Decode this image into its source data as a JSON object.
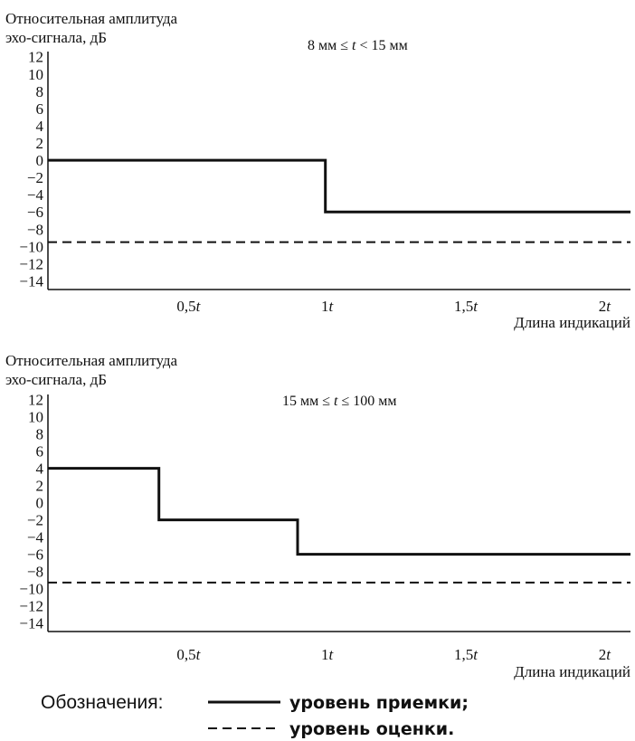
{
  "chart_data": [
    {
      "type": "line",
      "ylabel_line1": "Относительная амплитуда",
      "ylabel_line2": "эхо-сигнала, дБ",
      "xlabel": "Длина индикаций",
      "condition_prefix": "8 мм ≤ ",
      "condition_var": "t",
      "condition_suffix": " < 15 мм",
      "ylim": [
        -15,
        12.6
      ],
      "xlim": [
        0,
        2.1
      ],
      "yticks": [
        "12",
        "10",
        "8",
        "6",
        "4",
        "2",
        "0",
        "−2",
        "−4",
        "−6",
        "−8",
        "−10",
        "−12",
        "−14"
      ],
      "ytick_values": [
        12,
        10,
        8,
        6,
        4,
        2,
        0,
        -2,
        -4,
        -6,
        -8,
        -10,
        -12,
        -14
      ],
      "xticks": [
        {
          "value": 0.5,
          "num": "0,5",
          "var": "t"
        },
        {
          "value": 1,
          "num": "1",
          "var": "t"
        },
        {
          "value": 1.5,
          "num": "1,5",
          "var": "t"
        },
        {
          "value": 2,
          "num": "2",
          "var": "t"
        }
      ],
      "series": [
        {
          "style": "solid",
          "x": [
            0,
            1,
            1,
            2.1
          ],
          "y": [
            0,
            0,
            -6,
            -6
          ]
        },
        {
          "style": "dashed",
          "x": [
            0,
            2.1
          ],
          "y": [
            -9.5,
            -9.5
          ]
        }
      ]
    },
    {
      "type": "line",
      "ylabel_line1": "Относительная амплитуда",
      "ylabel_line2": "эхо-сигнала, дБ",
      "xlabel": "Длина индикаций",
      "condition_prefix": "15 мм ≤ ",
      "condition_var": "t",
      "condition_suffix": " ≤ 100 мм",
      "ylim": [
        -15,
        12.6
      ],
      "xlim": [
        0,
        2.1
      ],
      "yticks": [
        "12",
        "10",
        "8",
        "6",
        "4",
        "2",
        "0",
        "−2",
        "−4",
        "−6",
        "−8",
        "−10",
        "−12",
        "−14"
      ],
      "ytick_values": [
        12,
        10,
        8,
        6,
        4,
        2,
        0,
        -2,
        -4,
        -6,
        -8,
        -10,
        -12,
        -14
      ],
      "xticks": [
        {
          "value": 0.5,
          "num": "0,5",
          "var": "t"
        },
        {
          "value": 1,
          "num": "1",
          "var": "t"
        },
        {
          "value": 1.5,
          "num": "1,5",
          "var": "t"
        },
        {
          "value": 2,
          "num": "2",
          "var": "t"
        }
      ],
      "series": [
        {
          "style": "solid",
          "x": [
            0,
            0.4,
            0.4,
            0.9,
            0.9,
            2.1
          ],
          "y": [
            4,
            4,
            -2,
            -2,
            -6,
            -6
          ]
        },
        {
          "style": "dashed",
          "x": [
            0,
            2.1
          ],
          "y": [
            -9.3,
            -9.3
          ]
        }
      ]
    }
  ],
  "legend": {
    "title": "Обозначения:",
    "items": [
      {
        "style": "solid",
        "label": "уровень приемки;"
      },
      {
        "style": "dashed",
        "label": "уровень оценки."
      }
    ]
  }
}
